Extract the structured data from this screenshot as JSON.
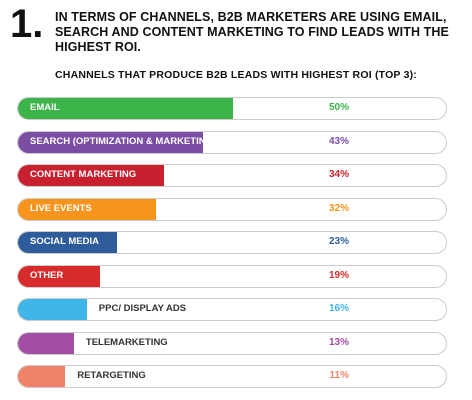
{
  "header": {
    "number": "1.",
    "headline": "IN TERMS OF CHANNELS, B2B MARKETERS ARE USING EMAIL, SEARCH AND CONTENT MARKETING TO FIND LEADS WITH THE HIGHEST ROI."
  },
  "chart_data": {
    "type": "bar",
    "orientation": "horizontal",
    "title": "CHANNELS THAT PRODUCE B2B LEADS WITH HIGHEST ROI (TOP 3):",
    "xlim": [
      0,
      100
    ],
    "categories": [
      "EMAIL",
      "SEARCH (OPTIMIZATION & MARKETING)",
      "CONTENT MARKETING",
      "LIVE EVENTS",
      "SOCIAL MEDIA",
      "OTHER",
      "PPC/ DISPLAY ADS",
      "TELEMARKETING",
      "RETARGETING"
    ],
    "values": [
      50,
      43,
      34,
      32,
      23,
      19,
      16,
      13,
      11
    ],
    "value_labels": [
      "50%",
      "43%",
      "34%",
      "32%",
      "23%",
      "19%",
      "16%",
      "13%",
      "11%"
    ],
    "colors": [
      "#3cb44a",
      "#7b4ea3",
      "#c8202f",
      "#f7941d",
      "#2e5c9a",
      "#d82b2b",
      "#3fb5e8",
      "#a24ea5",
      "#f0826a"
    ],
    "label_inside": [
      true,
      true,
      true,
      true,
      true,
      true,
      false,
      false,
      false
    ]
  }
}
